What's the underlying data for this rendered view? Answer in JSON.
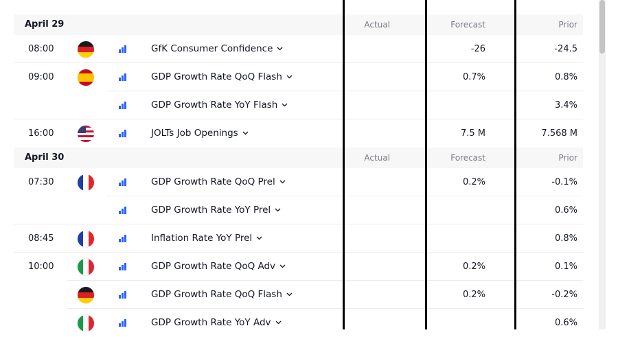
{
  "columns": {
    "actual": "Actual",
    "forecast": "Forecast",
    "prior": "Prior"
  },
  "colors": {
    "importance": "#2962ff",
    "header_bg": "#f7f7f8",
    "divider": "#000000"
  },
  "days": [
    {
      "date": "April 29",
      "events": [
        {
          "time": "08:00",
          "flag": "de",
          "name": "GfK Consumer Confidence",
          "actual": "",
          "forecast": "-26",
          "prior": "-24.5"
        },
        {
          "time": "09:00",
          "flag": "es",
          "name": "GDP Growth Rate QoQ Flash",
          "actual": "",
          "forecast": "0.7%",
          "prior": "0.8%"
        },
        {
          "time": "",
          "flag": "",
          "name": "GDP Growth Rate YoY Flash",
          "actual": "",
          "forecast": "",
          "prior": "3.4%"
        },
        {
          "time": "16:00",
          "flag": "us",
          "name": "JOLTs Job Openings",
          "actual": "",
          "forecast": "7.5 M",
          "prior": "7.568 M"
        }
      ]
    },
    {
      "date": "April 30",
      "events": [
        {
          "time": "07:30",
          "flag": "fr",
          "name": "GDP Growth Rate QoQ Prel",
          "actual": "",
          "forecast": "0.2%",
          "prior": "-0.1%"
        },
        {
          "time": "",
          "flag": "",
          "name": "GDP Growth Rate YoY Prel",
          "actual": "",
          "forecast": "",
          "prior": "0.6%"
        },
        {
          "time": "08:45",
          "flag": "fr",
          "name": "Inflation Rate YoY Prel",
          "actual": "",
          "forecast": "",
          "prior": "0.8%"
        },
        {
          "time": "10:00",
          "flag": "it",
          "name": "GDP Growth Rate QoQ Adv",
          "actual": "",
          "forecast": "0.2%",
          "prior": "0.1%"
        },
        {
          "time": "",
          "flag": "de",
          "name": "GDP Growth Rate QoQ Flash",
          "actual": "",
          "forecast": "0.2%",
          "prior": "-0.2%"
        },
        {
          "time": "",
          "flag": "it",
          "name": "GDP Growth Rate YoY Adv",
          "actual": "",
          "forecast": "",
          "prior": "0.6%"
        }
      ]
    }
  ]
}
